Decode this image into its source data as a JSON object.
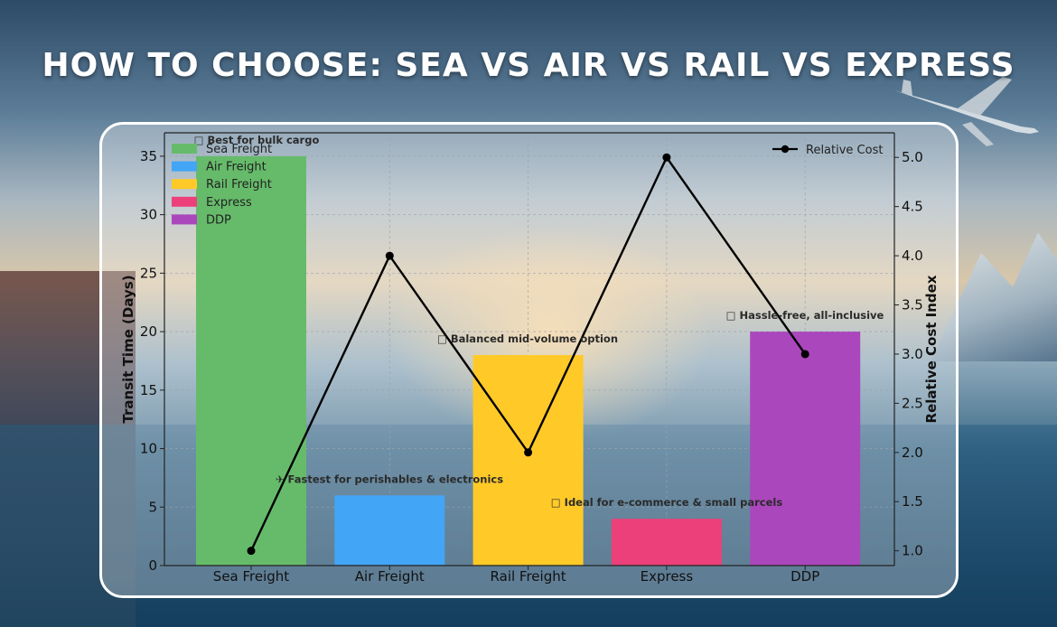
{
  "page_title": "HOW TO CHOOSE: SEA VS AIR VS RAIL VS EXPRESS",
  "chart_data": {
    "type": "bar",
    "categories": [
      "Sea Freight",
      "Air Freight",
      "Rail Freight",
      "Express",
      "DDP"
    ],
    "series": [
      {
        "name": "Transit Time (Days)",
        "values": [
          35,
          6,
          18,
          4,
          20
        ]
      },
      {
        "name": "Relative Cost",
        "type": "line",
        "axis": "right",
        "values": [
          1.0,
          4.0,
          2.0,
          5.0,
          3.0
        ]
      }
    ],
    "bar_legend": [
      "Sea Freight",
      "Air Freight",
      "Rail Freight",
      "Express",
      "DDP"
    ],
    "bar_colors": [
      "#66bb6a",
      "#42a5f5",
      "#ffca28",
      "#ec407a",
      "#ab47bc"
    ],
    "line_color": "#000000",
    "annotations": [
      "□ Best for bulk cargo",
      "✈ Fastest for perishables & electronics",
      "□ Balanced mid-volume option",
      "□ Ideal for e-commerce & small parcels",
      "□ Hassle-free, all-inclusive"
    ],
    "ylabel": "Transit Time (Days)",
    "y2label": "Relative Cost Index",
    "ylim": [
      0,
      37
    ],
    "y2lim": [
      0.85,
      5.25
    ],
    "yticks": [
      0,
      5,
      10,
      15,
      20,
      25,
      30,
      35
    ],
    "y2ticks": [
      1.0,
      1.5,
      2.0,
      2.5,
      3.0,
      3.5,
      4.0,
      4.5,
      5.0
    ],
    "grid": true,
    "legend_position": "top-left",
    "line_legend_position": "top-right"
  }
}
